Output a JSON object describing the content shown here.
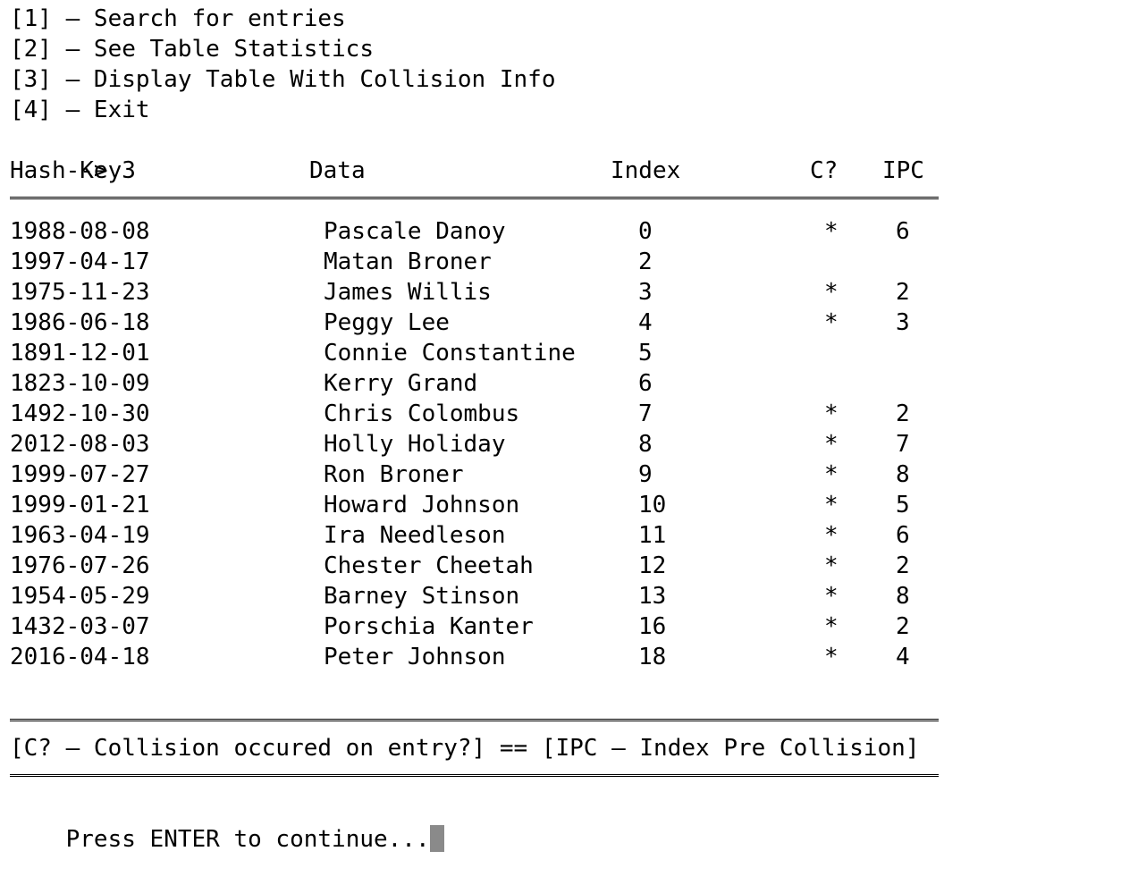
{
  "menu": [
    {
      "text": "[1] – Search for entries"
    },
    {
      "text": "[2] – See Table Statistics"
    },
    {
      "text": "[3] – Display Table With Collision Info"
    },
    {
      "text": "[4] – Exit"
    }
  ],
  "prompt": {
    "arrow": "-->",
    "input": "3"
  },
  "table": {
    "headers": {
      "hash_key": "Hash Key",
      "data": "Data",
      "index": "Index",
      "collision": "C?",
      "ipc": "IPC"
    },
    "rows": [
      {
        "hash_key": "1988-08-08",
        "data": "Pascale Danoy",
        "index": "0",
        "collision": "*",
        "ipc": "6"
      },
      {
        "hash_key": "1997-04-17",
        "data": "Matan Broner",
        "index": "2",
        "collision": "",
        "ipc": ""
      },
      {
        "hash_key": "1975-11-23",
        "data": "James Willis",
        "index": "3",
        "collision": "*",
        "ipc": "2"
      },
      {
        "hash_key": "1986-06-18",
        "data": "Peggy Lee",
        "index": "4",
        "collision": "*",
        "ipc": "3"
      },
      {
        "hash_key": "1891-12-01",
        "data": "Connie Constantine",
        "index": "5",
        "collision": "",
        "ipc": ""
      },
      {
        "hash_key": "1823-10-09",
        "data": "Kerry Grand",
        "index": "6",
        "collision": "",
        "ipc": ""
      },
      {
        "hash_key": "1492-10-30",
        "data": "Chris Colombus",
        "index": "7",
        "collision": "*",
        "ipc": "2"
      },
      {
        "hash_key": "2012-08-03",
        "data": "Holly Holiday",
        "index": "8",
        "collision": "*",
        "ipc": "7"
      },
      {
        "hash_key": "1999-07-27",
        "data": "Ron Broner",
        "index": "9",
        "collision": "*",
        "ipc": "8"
      },
      {
        "hash_key": "1999-01-21",
        "data": "Howard Johnson",
        "index": "10",
        "collision": "*",
        "ipc": "5"
      },
      {
        "hash_key": "1963-04-19",
        "data": "Ira Needleson",
        "index": "11",
        "collision": "*",
        "ipc": "6"
      },
      {
        "hash_key": "1976-07-26",
        "data": "Chester Cheetah",
        "index": "12",
        "collision": "*",
        "ipc": "2"
      },
      {
        "hash_key": "1954-05-29",
        "data": "Barney Stinson",
        "index": "13",
        "collision": "*",
        "ipc": "8"
      },
      {
        "hash_key": "1432-03-07",
        "data": "Porschia Kanter",
        "index": "16",
        "collision": "*",
        "ipc": "2"
      },
      {
        "hash_key": "2016-04-18",
        "data": "Peter Johnson",
        "index": "18",
        "collision": "*",
        "ipc": "4"
      }
    ]
  },
  "legend": "[C? – Collision occured on entry?] == [IPC – Index Pre Collision]",
  "continue_prompt": "Press ENTER to continue..."
}
